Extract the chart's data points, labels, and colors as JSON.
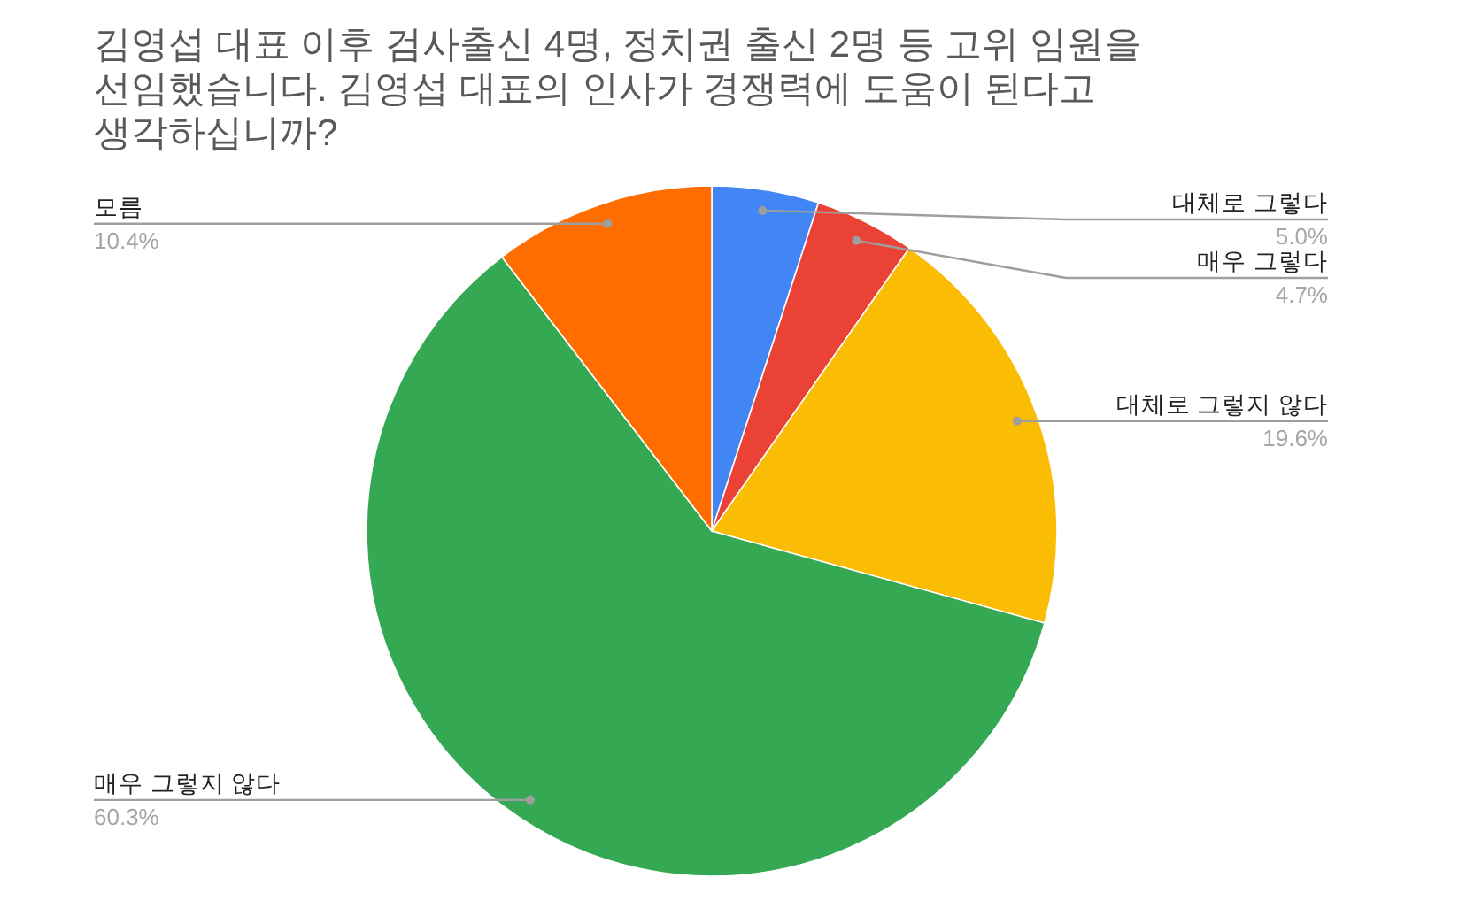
{
  "chart_data": {
    "type": "pie",
    "title": "김영섭 대표 이후 검사출신 4명, 정치권 출신 2명 등 고위 임원을 선임했습니다. 김영섭 대표의 인사가 경쟁력에 도움이 된다고 생각하십니까?",
    "categories": [
      "대체로 그렇다",
      "매우 그렇다",
      "대체로 그렇지 않다",
      "매우 그렇지 않다",
      "모름"
    ],
    "values": [
      5.0,
      4.7,
      19.6,
      60.3,
      10.4
    ],
    "value_labels": [
      "5.0%",
      "4.7%",
      "19.6%",
      "60.3%",
      "10.4%"
    ],
    "colors": [
      "#4285f4",
      "#ea4335",
      "#fbbc04",
      "#34a853",
      "#ff6d01"
    ]
  }
}
